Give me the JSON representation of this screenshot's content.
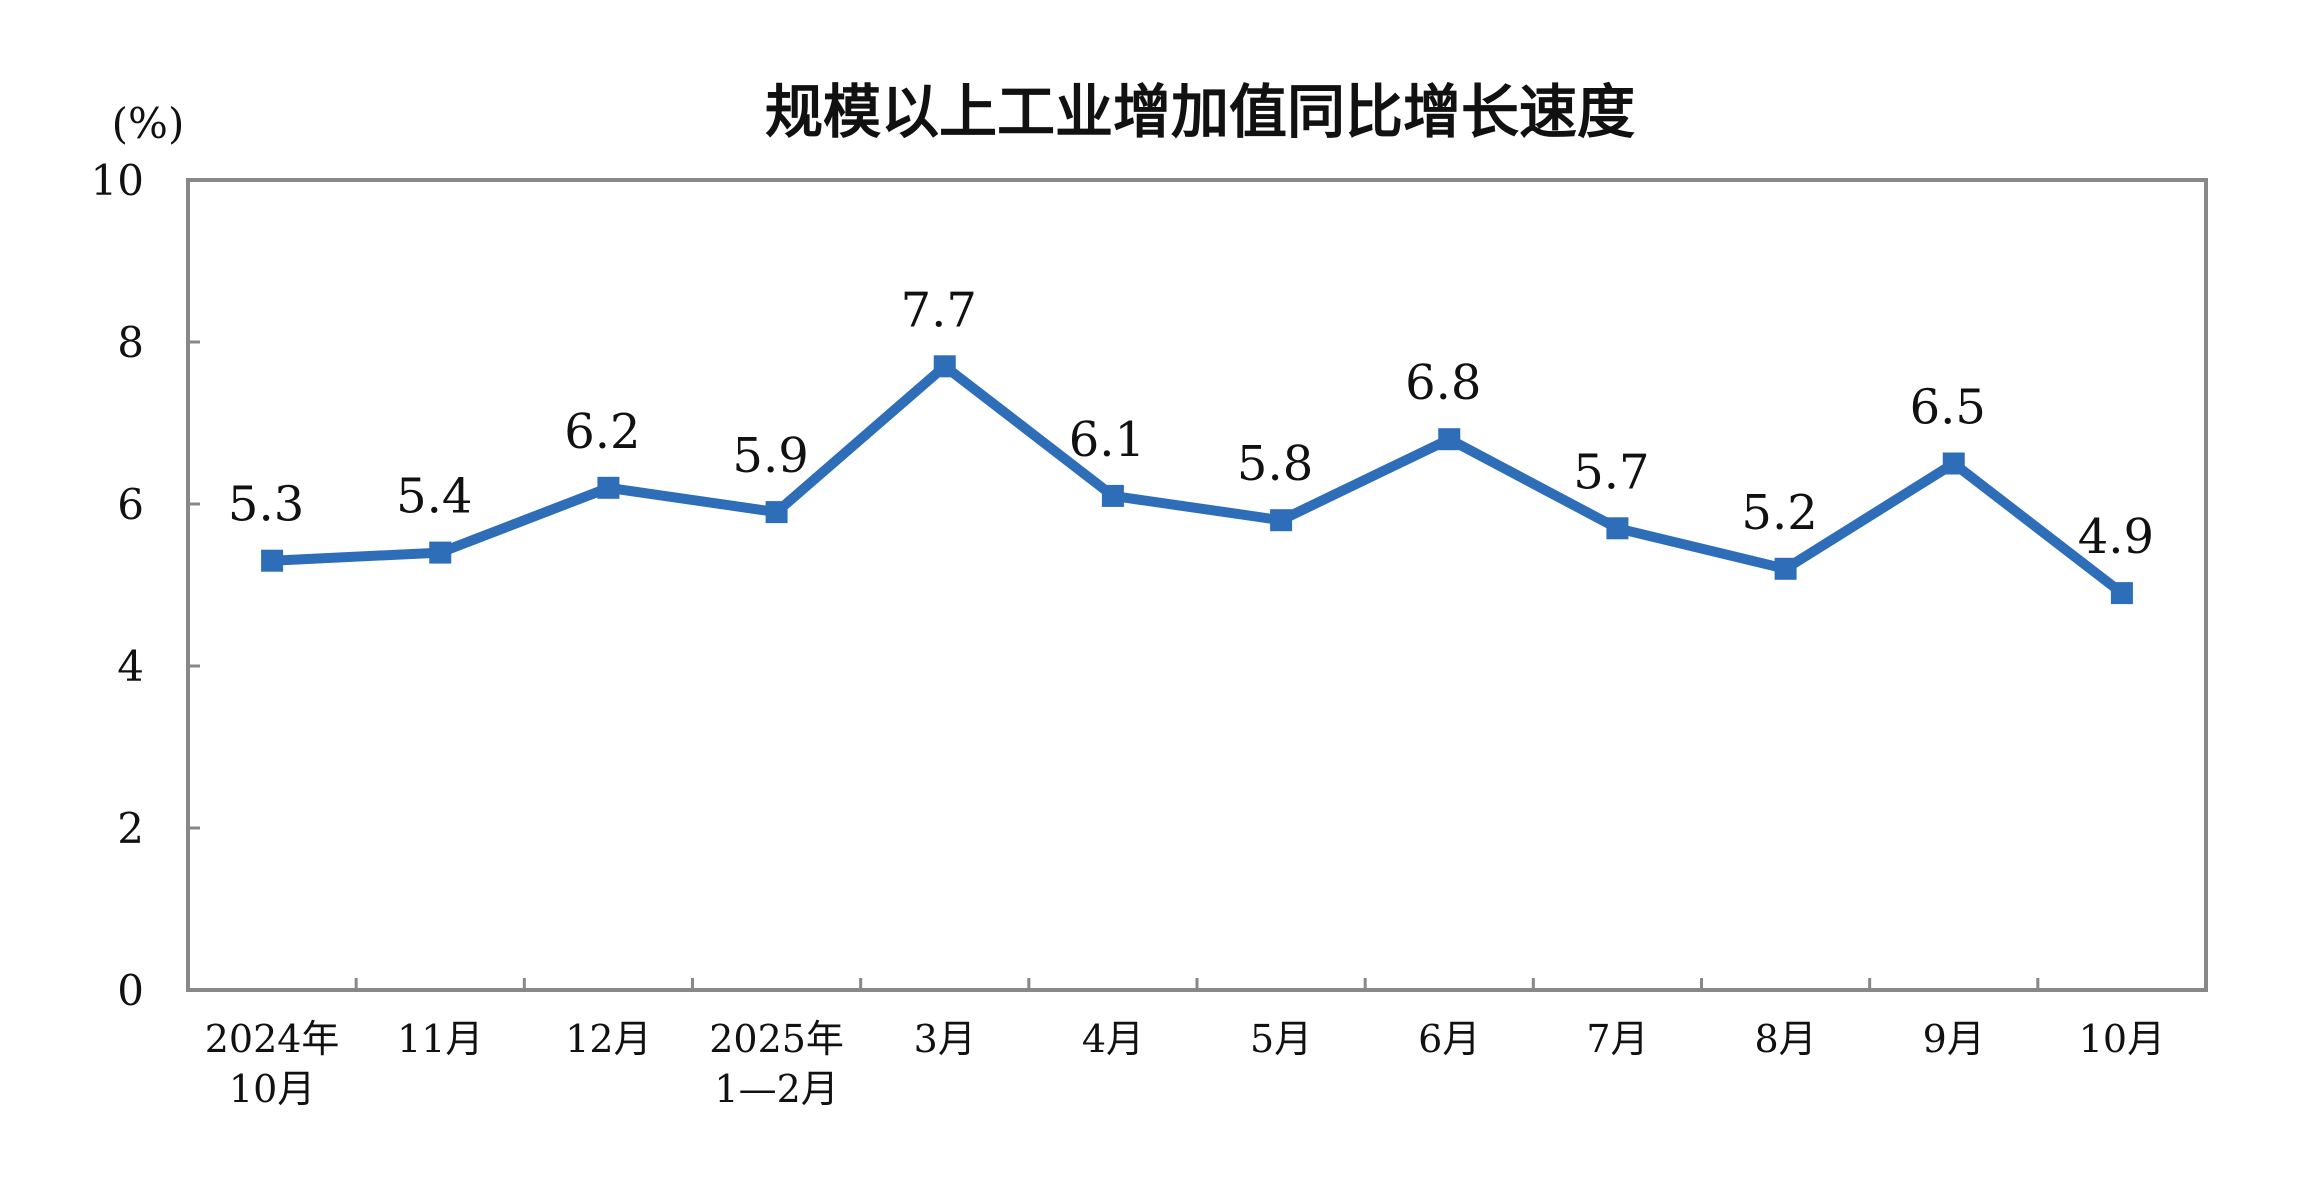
{
  "chart_data": {
    "type": "line",
    "title": "规模以上工业增加值同比增长速度",
    "ylabel": "(%)",
    "xlabel": "",
    "ylim": [
      0,
      10
    ],
    "yticks": [
      0,
      2,
      4,
      6,
      8,
      10
    ],
    "grid": false,
    "legend": "none",
    "categories": [
      [
        "2024年",
        "10月"
      ],
      [
        "11月"
      ],
      [
        "12月"
      ],
      [
        "2025年",
        "1—2月"
      ],
      [
        "3月"
      ],
      [
        "4月"
      ],
      [
        "5月"
      ],
      [
        "6月"
      ],
      [
        "7月"
      ],
      [
        "8月"
      ],
      [
        "9月"
      ],
      [
        "10月"
      ]
    ],
    "series": [
      {
        "values": [
          5.3,
          5.4,
          6.2,
          5.9,
          7.7,
          6.1,
          5.8,
          6.8,
          5.7,
          5.2,
          6.5,
          4.9
        ],
        "labels": [
          "5.3",
          "5.4",
          "6.2",
          "5.9",
          "7.7",
          "6.1",
          "5.8",
          "6.8",
          "5.7",
          "5.2",
          "6.5",
          "4.9"
        ],
        "color": "#2E6DB8"
      }
    ],
    "colors": {
      "line": "#2E6DB8",
      "axis": "#888888"
    }
  }
}
